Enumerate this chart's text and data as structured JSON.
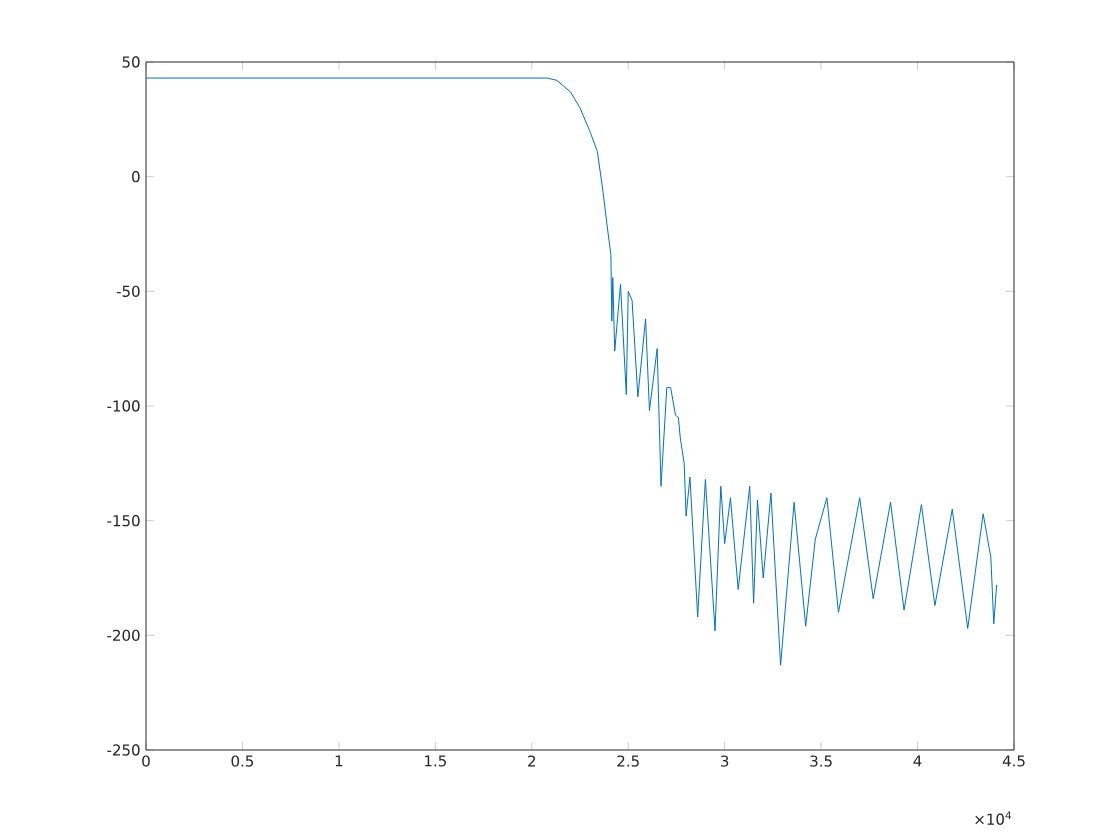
{
  "chart_data": {
    "type": "line",
    "color": "#0072bd",
    "x": [
      0,
      2.08,
      2.13,
      2.2,
      2.25,
      2.3,
      2.34,
      2.37,
      2.39,
      2.41,
      2.415,
      2.42,
      2.43,
      2.46,
      2.49,
      2.5,
      2.52,
      2.55,
      2.59,
      2.61,
      2.65,
      2.67,
      2.7,
      2.72,
      2.745,
      2.76,
      2.77,
      2.79,
      2.8,
      2.82,
      2.86,
      2.9,
      2.95,
      2.98,
      3.0,
      3.03,
      3.07,
      3.13,
      3.15,
      3.17,
      3.2,
      3.24,
      3.29,
      3.36,
      3.42,
      3.47,
      3.53,
      3.59,
      3.7,
      3.77,
      3.86,
      3.93,
      4.02,
      4.09,
      4.18,
      4.26,
      4.34,
      4.38,
      4.395,
      4.41
    ],
    "values": [
      43,
      43,
      42,
      37,
      30,
      20,
      11,
      -7,
      -21,
      -34,
      -63,
      -44,
      -76,
      -47,
      -95,
      -50,
      -54,
      -96,
      -62,
      -102,
      -75,
      -135,
      -92,
      -92,
      -104,
      -105,
      -114,
      -125,
      -148,
      -131,
      -192,
      -132,
      -198,
      -135,
      -160,
      -140,
      -180,
      -135,
      -186,
      -141,
      -175,
      -138,
      -213,
      -142,
      -196,
      -158,
      -140,
      -190,
      -140,
      -184,
      -142,
      -189,
      -143,
      -187,
      -145,
      -197,
      -147,
      -166,
      -195,
      -178
    ],
    "xlim": [
      0,
      4.5
    ],
    "xticks": [
      0,
      0.5,
      1,
      1.5,
      2,
      2.5,
      3,
      3.5,
      4,
      4.5
    ],
    "ylim": [
      -250,
      50
    ],
    "yticks": [
      -250,
      -200,
      -150,
      -100,
      -50,
      0,
      50
    ],
    "annotations": [
      "×10$^{4}$"
    ],
    "grid": false
  }
}
